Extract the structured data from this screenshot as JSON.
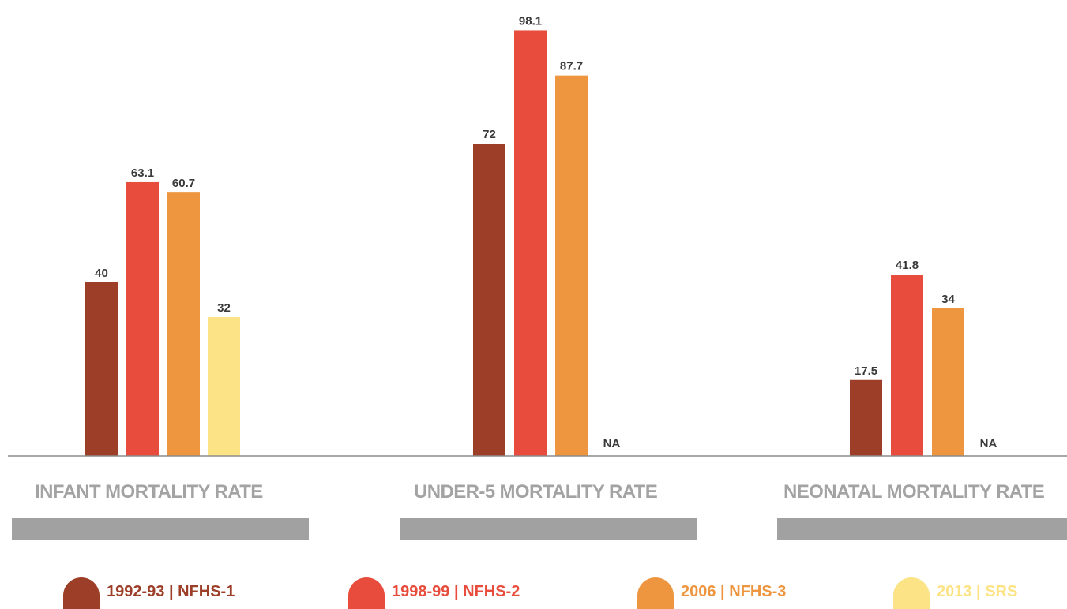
{
  "colors": {
    "nfhs1": "#9c3e28",
    "nfhs2": "#e84c3c",
    "nfhs3": "#ee963f",
    "srs": "#fce385",
    "axis": "#8c8c8c",
    "category_title": "#a3a3a3",
    "value_label": "#3a3a3a"
  },
  "chart_data": {
    "type": "bar",
    "categories": [
      "INFANT MORTALITY RATE",
      "UNDER-5 MORTALITY RATE",
      "NEONATAL MORTALITY RATE"
    ],
    "series": [
      {
        "name": "1992-93 | NFHS-1",
        "values": [
          40,
          72,
          17.5
        ],
        "labels": [
          "40",
          "72",
          "17.5"
        ]
      },
      {
        "name": "1998-99 | NFHS-2",
        "values": [
          63.1,
          98.1,
          41.8
        ],
        "labels": [
          "63.1",
          "98.1",
          "41.8"
        ]
      },
      {
        "name": "2006 | NFHS-3",
        "values": [
          60.7,
          87.7,
          34
        ],
        "labels": [
          "60.7",
          "87.7",
          "34"
        ]
      },
      {
        "name": "2013 | SRS",
        "values": [
          32,
          null,
          null
        ],
        "labels": [
          "32",
          "NA",
          "NA"
        ]
      }
    ],
    "ylim": [
      0,
      100
    ],
    "grid": false,
    "legend_position": "bottom"
  }
}
